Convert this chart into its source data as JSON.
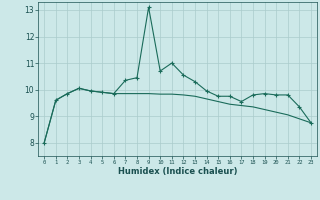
{
  "xlabel": "Humidex (Indice chaleur)",
  "ylabel": "",
  "background_color": "#cce8e8",
  "line_color": "#1a6b5a",
  "grid_color": "#aacccc",
  "xlim": [
    -0.5,
    23.5
  ],
  "ylim": [
    7.5,
    13.3
  ],
  "yticks": [
    8,
    9,
    10,
    11,
    12,
    13
  ],
  "xticks": [
    0,
    1,
    2,
    3,
    4,
    5,
    6,
    7,
    8,
    9,
    10,
    11,
    12,
    13,
    14,
    15,
    16,
    17,
    18,
    19,
    20,
    21,
    22,
    23
  ],
  "line1_x": [
    0,
    1,
    2,
    3,
    4,
    5,
    6,
    7,
    8,
    9,
    10,
    11,
    12,
    13,
    14,
    15,
    16,
    17,
    18,
    19,
    20,
    21,
    22,
    23
  ],
  "line1_y": [
    8.0,
    9.6,
    9.85,
    10.05,
    9.95,
    9.9,
    9.85,
    10.35,
    10.45,
    13.1,
    10.7,
    11.0,
    10.55,
    10.3,
    9.95,
    9.75,
    9.75,
    9.55,
    9.8,
    9.85,
    9.8,
    9.8,
    9.35,
    8.75
  ],
  "line2_x": [
    0,
    1,
    2,
    3,
    4,
    5,
    6,
    7,
    8,
    9,
    10,
    11,
    12,
    13,
    14,
    15,
    16,
    17,
    18,
    19,
    20,
    21,
    22,
    23
  ],
  "line2_y": [
    8.0,
    9.6,
    9.85,
    10.05,
    9.95,
    9.9,
    9.85,
    9.85,
    9.85,
    9.85,
    9.83,
    9.83,
    9.8,
    9.75,
    9.65,
    9.55,
    9.45,
    9.4,
    9.35,
    9.25,
    9.15,
    9.05,
    8.9,
    8.75
  ]
}
